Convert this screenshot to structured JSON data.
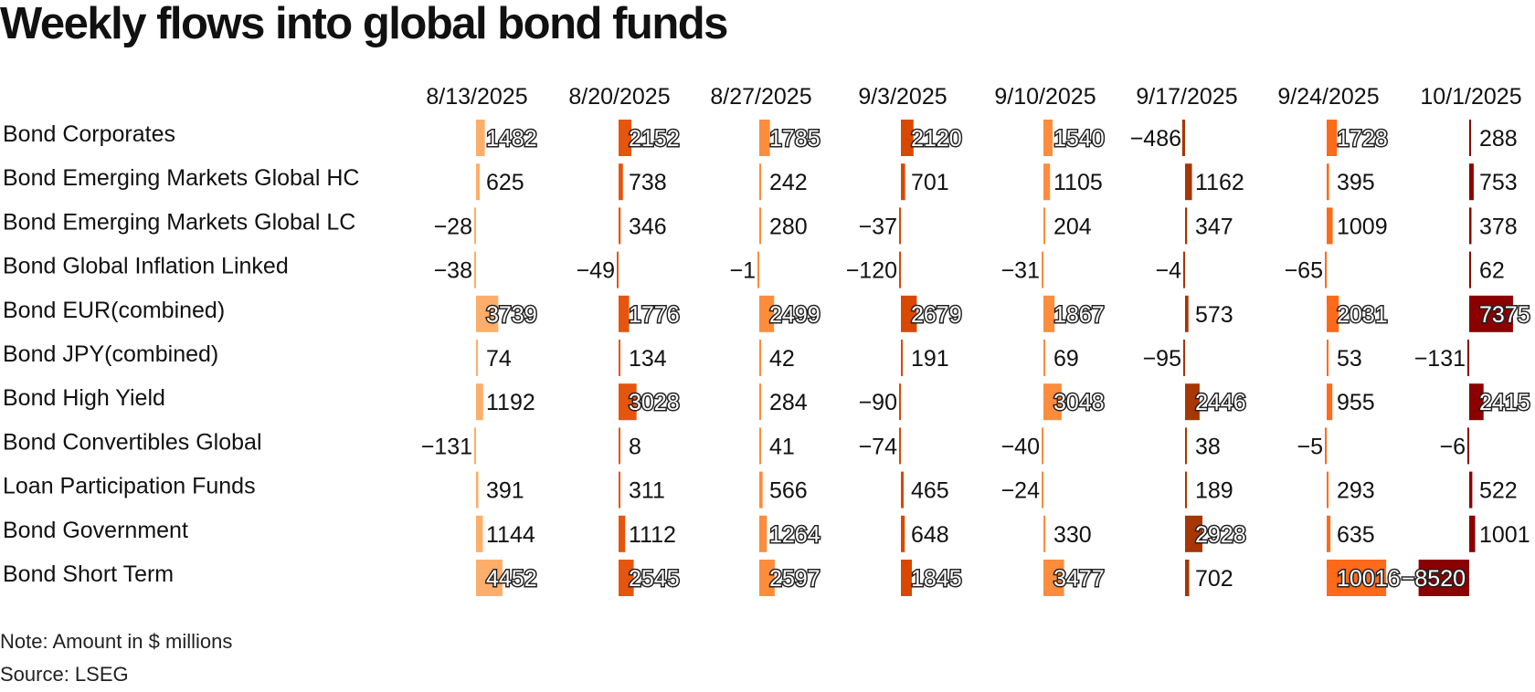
{
  "chart_data": {
    "type": "table",
    "title": "Weekly flows into global bond funds",
    "columns": [
      "8/13/2025",
      "8/20/2025",
      "8/27/2025",
      "9/3/2025",
      "9/10/2025",
      "9/17/2025",
      "9/24/2025",
      "10/1/2025"
    ],
    "rows": [
      {
        "label": "Bond Corporates",
        "values": [
          1482,
          2152,
          1785,
          2120,
          1540,
          -486,
          1728,
          288
        ]
      },
      {
        "label": "Bond Emerging Markets Global HC",
        "values": [
          625,
          738,
          242,
          701,
          1105,
          1162,
          395,
          753
        ]
      },
      {
        "label": "Bond Emerging Markets Global LC",
        "values": [
          -28,
          346,
          280,
          -37,
          204,
          347,
          1009,
          378
        ]
      },
      {
        "label": "Bond Global Inflation Linked",
        "values": [
          -38,
          -49,
          -1,
          -120,
          -31,
          -4,
          -65,
          62
        ]
      },
      {
        "label": "Bond EUR(combined)",
        "values": [
          3739,
          1776,
          2499,
          2679,
          1867,
          573,
          2031,
          7375
        ]
      },
      {
        "label": "Bond JPY(combined)",
        "values": [
          74,
          134,
          42,
          191,
          69,
          -95,
          53,
          -131
        ]
      },
      {
        "label": "Bond High Yield",
        "values": [
          1192,
          3028,
          284,
          -90,
          3048,
          2446,
          955,
          2415
        ]
      },
      {
        "label": "Bond Convertibles Global",
        "values": [
          -131,
          8,
          41,
          -74,
          -40,
          38,
          -5,
          -6
        ]
      },
      {
        "label": "Loan Participation Funds",
        "values": [
          391,
          311,
          566,
          465,
          -24,
          189,
          293,
          522
        ]
      },
      {
        "label": "Bond Government",
        "values": [
          1144,
          1112,
          1264,
          648,
          330,
          2928,
          635,
          1001
        ]
      },
      {
        "label": "Bond Short Term",
        "values": [
          4452,
          2545,
          2597,
          1845,
          3477,
          702,
          10016,
          -8520
        ]
      }
    ],
    "column_colors": [
      "#fdae6b",
      "#e6550d",
      "#fd8d3c",
      "#d94801",
      "#fd8d3c",
      "#a63603",
      "#fd6a1a",
      "#8b0000"
    ]
  },
  "footer": {
    "note": "Note: Amount in $ millions",
    "source": "Source: LSEG"
  }
}
